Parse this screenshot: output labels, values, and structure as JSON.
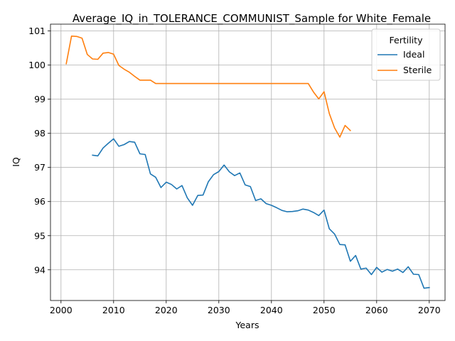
{
  "chart_data": {
    "type": "line",
    "title": "Average_IQ_in_TOLERANCE_COMMUNIST_Sample for White_Female",
    "xlabel": "Years",
    "ylabel": "IQ",
    "xlim": [
      1998,
      2073
    ],
    "ylim": [
      93.1,
      101.2
    ],
    "x_ticks": [
      2000,
      2010,
      2020,
      2030,
      2040,
      2050,
      2060,
      2070
    ],
    "y_ticks": [
      94,
      95,
      96,
      97,
      98,
      99,
      100,
      101
    ],
    "grid": true,
    "legend": {
      "title": "Fertility",
      "placement": "top-right"
    },
    "series": [
      {
        "name": "Ideal",
        "color": "#1f77b4",
        "x": [
          2006,
          2007,
          2008,
          2009,
          2010,
          2011,
          2012,
          2013,
          2014,
          2015,
          2016,
          2017,
          2018,
          2019,
          2020,
          2021,
          2022,
          2023,
          2024,
          2025,
          2026,
          2027,
          2028,
          2029,
          2030,
          2031,
          2032,
          2033,
          2034,
          2035,
          2036,
          2037,
          2038,
          2039,
          2040,
          2041,
          2042,
          2043,
          2044,
          2045,
          2046,
          2047,
          2048,
          2049,
          2050,
          2051,
          2052,
          2053,
          2054,
          2055,
          2056,
          2057,
          2058,
          2059,
          2060,
          2061,
          2062,
          2063,
          2064,
          2065,
          2066,
          2067,
          2068,
          2069,
          2070
        ],
        "values": [
          97.36,
          97.34,
          97.57,
          97.71,
          97.84,
          97.62,
          97.67,
          97.76,
          97.74,
          97.4,
          97.38,
          96.81,
          96.71,
          96.41,
          96.57,
          96.5,
          96.37,
          96.47,
          96.11,
          95.89,
          96.18,
          96.19,
          96.58,
          96.79,
          96.88,
          97.07,
          96.87,
          96.76,
          96.84,
          96.49,
          96.44,
          96.03,
          96.08,
          95.94,
          95.89,
          95.82,
          95.74,
          95.7,
          95.71,
          95.73,
          95.78,
          95.75,
          95.68,
          95.59,
          95.75,
          95.2,
          95.05,
          94.74,
          94.73,
          94.25,
          94.42,
          94.02,
          94.05,
          93.86,
          94.07,
          93.93,
          94.01,
          93.96,
          94.02,
          93.92,
          94.09,
          93.87,
          93.86,
          93.46,
          93.48
        ]
      },
      {
        "name": "Sterile",
        "color": "#ff7f0e",
        "x": [
          2001,
          2002,
          2003,
          2004,
          2005,
          2006,
          2007,
          2008,
          2009,
          2010,
          2011,
          2012,
          2013,
          2014,
          2015,
          2016,
          2017,
          2018,
          2019,
          2020,
          2021,
          2022,
          2023,
          2024,
          2025,
          2026,
          2027,
          2028,
          2029,
          2030,
          2031,
          2032,
          2033,
          2034,
          2035,
          2036,
          2037,
          2038,
          2039,
          2040,
          2041,
          2042,
          2043,
          2044,
          2045,
          2046,
          2047,
          2048,
          2049,
          2050,
          2051,
          2052,
          2053,
          2054,
          2055
        ],
        "values": [
          100.04,
          100.85,
          100.84,
          100.79,
          100.31,
          100.18,
          100.17,
          100.35,
          100.37,
          100.32,
          99.99,
          99.88,
          99.79,
          99.67,
          99.56,
          99.56,
          99.56,
          99.46,
          99.46,
          99.46,
          99.46,
          99.46,
          99.46,
          99.46,
          99.46,
          99.46,
          99.46,
          99.46,
          99.46,
          99.46,
          99.46,
          99.46,
          99.46,
          99.46,
          99.46,
          99.46,
          99.46,
          99.46,
          99.46,
          99.46,
          99.46,
          99.46,
          99.46,
          99.46,
          99.46,
          99.46,
          99.46,
          99.21,
          99.01,
          99.22,
          98.58,
          98.16,
          97.89,
          98.23,
          98.08
        ]
      }
    ]
  }
}
